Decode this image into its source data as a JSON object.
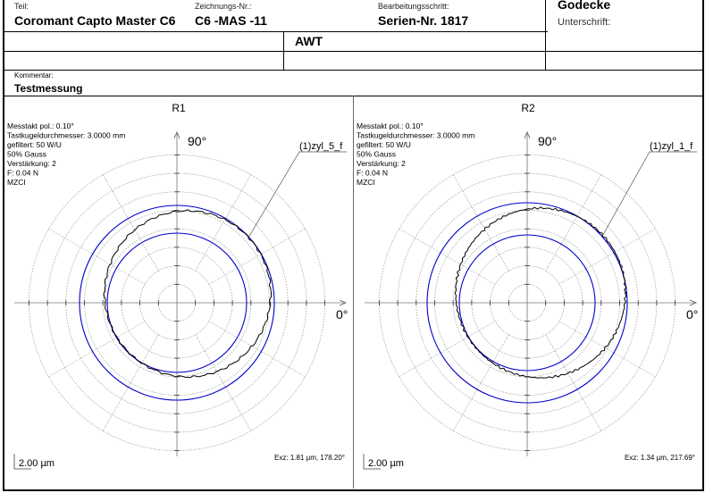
{
  "header": {
    "teil_label": "Teil:",
    "teil_value": "Coromant Capto Master C6",
    "zeichnung_label": "Zeichnungs-Nr.:",
    "zeichnung_value": "C6 -MAS -11",
    "schritt_label": "Bearbeitungsschritt:",
    "schritt_value": "Serien-Nr. 1817",
    "name": "Godecke",
    "unterschrift_label": "Unterschrift:",
    "row2_value": "AWT",
    "kommentar_label": "Kommentar:",
    "kommentar_value": "Testmessung"
  },
  "colors": {
    "reference_circles": "#0000cc",
    "profile": "#000000",
    "grid": "#999999"
  },
  "chart_data": [
    {
      "type": "polar",
      "title": "R1",
      "info": [
        "Messtakt pol.: 0.10°",
        "Tastkugeldurchmesser: 3.0000 mm",
        "gefiltert: 50 W/U",
        "50% Gauss",
        "Verstärkung: 2",
        "F: 0.04 N",
        "MZCI"
      ],
      "angle_labels": [
        "90°",
        "0°"
      ],
      "series_label": "(1)zyl_5_f",
      "scale_label": "2.00 µm",
      "eccentricity": "Exz:  1.81 µm, 178.20°",
      "grid": true
    },
    {
      "type": "polar",
      "title": "R2",
      "info": [
        "Messtakt pol.: 0.10°",
        "Tastkugeldurchmesser: 3.0000 mm",
        "gefiltert: 50 W/U",
        "50% Gauss",
        "Verstärkung: 2",
        "F: 0.04 N",
        "MZCI"
      ],
      "angle_labels": [
        "90°",
        "0°"
      ],
      "series_label": "(1)zyl_1_f",
      "scale_label": "2.00 µm",
      "eccentricity": "Exz:  1.34 µm, 217.69°",
      "grid": true
    }
  ]
}
